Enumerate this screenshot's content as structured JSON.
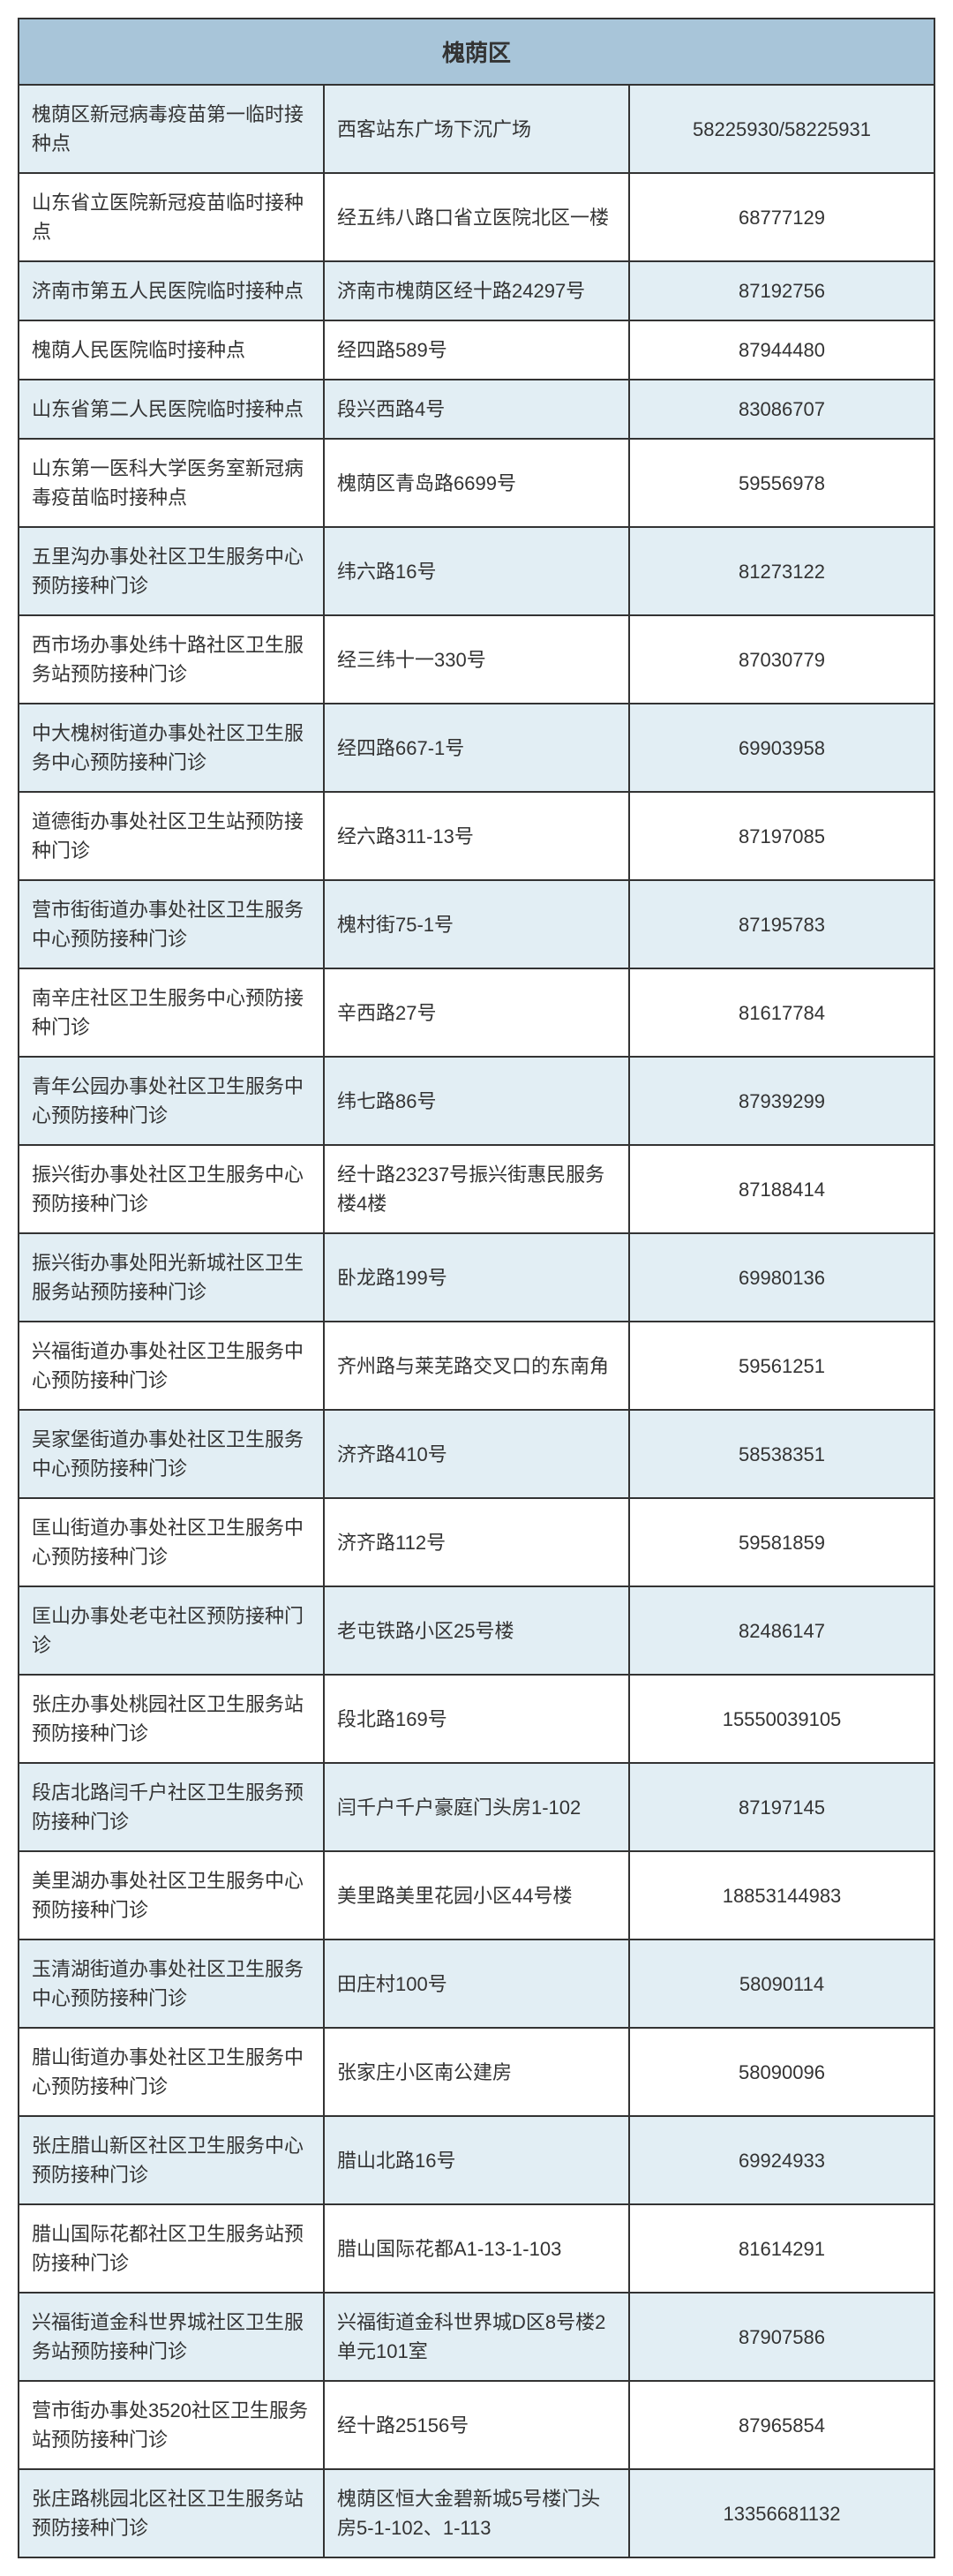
{
  "header": {
    "title": "槐荫区"
  },
  "table": {
    "columns": [
      "name",
      "address",
      "phone"
    ],
    "rows": [
      {
        "name": "槐荫区新冠病毒疫苗第一临时接种点",
        "address": "西客站东广场下沉广场",
        "phone": "58225930/58225931"
      },
      {
        "name": "山东省立医院新冠疫苗临时接种点",
        "address": "经五纬八路口省立医院北区一楼",
        "phone": "68777129"
      },
      {
        "name": "济南市第五人民医院临时接种点",
        "address": "济南市槐荫区经十路24297号",
        "phone": "87192756"
      },
      {
        "name": "槐荫人民医院临时接种点",
        "address": "经四路589号",
        "phone": "87944480"
      },
      {
        "name": "山东省第二人民医院临时接种点",
        "address": "段兴西路4号",
        "phone": "83086707"
      },
      {
        "name": "山东第一医科大学医务室新冠病毒疫苗临时接种点",
        "address": "槐荫区青岛路6699号",
        "phone": "59556978"
      },
      {
        "name": "五里沟办事处社区卫生服务中心预防接种门诊",
        "address": "纬六路16号",
        "phone": "81273122"
      },
      {
        "name": "西市场办事处纬十路社区卫生服务站预防接种门诊",
        "address": "经三纬十一330号",
        "phone": "87030779"
      },
      {
        "name": "中大槐树街道办事处社区卫生服务中心预防接种门诊",
        "address": "经四路667-1号",
        "phone": "69903958"
      },
      {
        "name": "道德街办事处社区卫生站预防接种门诊",
        "address": "经六路311-13号",
        "phone": "87197085"
      },
      {
        "name": "营市街街道办事处社区卫生服务中心预防接种门诊",
        "address": "槐村街75-1号",
        "phone": "87195783"
      },
      {
        "name": "南辛庄社区卫生服务中心预防接种门诊",
        "address": "辛西路27号",
        "phone": "81617784"
      },
      {
        "name": "青年公园办事处社区卫生服务中心预防接种门诊",
        "address": "纬七路86号",
        "phone": "87939299"
      },
      {
        "name": "振兴街办事处社区卫生服务中心预防接种门诊",
        "address": "经十路23237号振兴街惠民服务楼4楼",
        "phone": "87188414"
      },
      {
        "name": "振兴街办事处阳光新城社区卫生服务站预防接种门诊",
        "address": "卧龙路199号",
        "phone": "69980136"
      },
      {
        "name": "兴福街道办事处社区卫生服务中心预防接种门诊",
        "address": "齐州路与莱芜路交叉口的东南角",
        "phone": "59561251"
      },
      {
        "name": "吴家堡街道办事处社区卫生服务中心预防接种门诊",
        "address": "济齐路410号",
        "phone": "58538351"
      },
      {
        "name": "匡山街道办事处社区卫生服务中心预防接种门诊",
        "address": "济齐路112号",
        "phone": "59581859"
      },
      {
        "name": "匡山办事处老屯社区预防接种门诊",
        "address": "老屯铁路小区25号楼",
        "phone": "82486147"
      },
      {
        "name": "张庄办事处桃园社区卫生服务站预防接种门诊",
        "address": "段北路169号",
        "phone": "15550039105"
      },
      {
        "name": "段店北路闫千户社区卫生服务预防接种门诊",
        "address": "闫千户千户豪庭门头房1-102",
        "phone": "87197145"
      },
      {
        "name": "美里湖办事处社区卫生服务中心预防接种门诊",
        "address": "美里路美里花园小区44号楼",
        "phone": "18853144983"
      },
      {
        "name": "玉清湖街道办事处社区卫生服务中心预防接种门诊",
        "address": "田庄村100号",
        "phone": "58090114"
      },
      {
        "name": "腊山街道办事处社区卫生服务中心预防接种门诊",
        "address": "张家庄小区南公建房",
        "phone": "58090096"
      },
      {
        "name": "张庄腊山新区社区卫生服务中心预防接种门诊",
        "address": "腊山北路16号",
        "phone": "69924933"
      },
      {
        "name": "腊山国际花都社区卫生服务站预防接种门诊",
        "address": "腊山国际花都A1-13-1-103",
        "phone": "81614291"
      },
      {
        "name": "兴福街道金科世界城社区卫生服务站预防接种门诊",
        "address": "兴福街道金科世界城D区8号楼2单元101室",
        "phone": "87907586"
      },
      {
        "name": "营市街办事处3520社区卫生服务站预防接种门诊",
        "address": "经十路25156号",
        "phone": "87965854"
      },
      {
        "name": "张庄路桃园北区社区卫生服务站预防接种门诊",
        "address": "槐荫区恒大金碧新城5号楼门头房5-1-102、1-113",
        "phone": "13356681132"
      }
    ]
  },
  "styling": {
    "header_bg": "#a8c5d9",
    "even_row_bg": "#e2eef4",
    "odd_row_bg": "#ffffff",
    "border_color": "#333333",
    "text_color": "#333333",
    "header_fontsize": 26,
    "cell_fontsize": 22,
    "col_widths": {
      "name": "43%",
      "address": "36%",
      "phone": "21%"
    }
  }
}
